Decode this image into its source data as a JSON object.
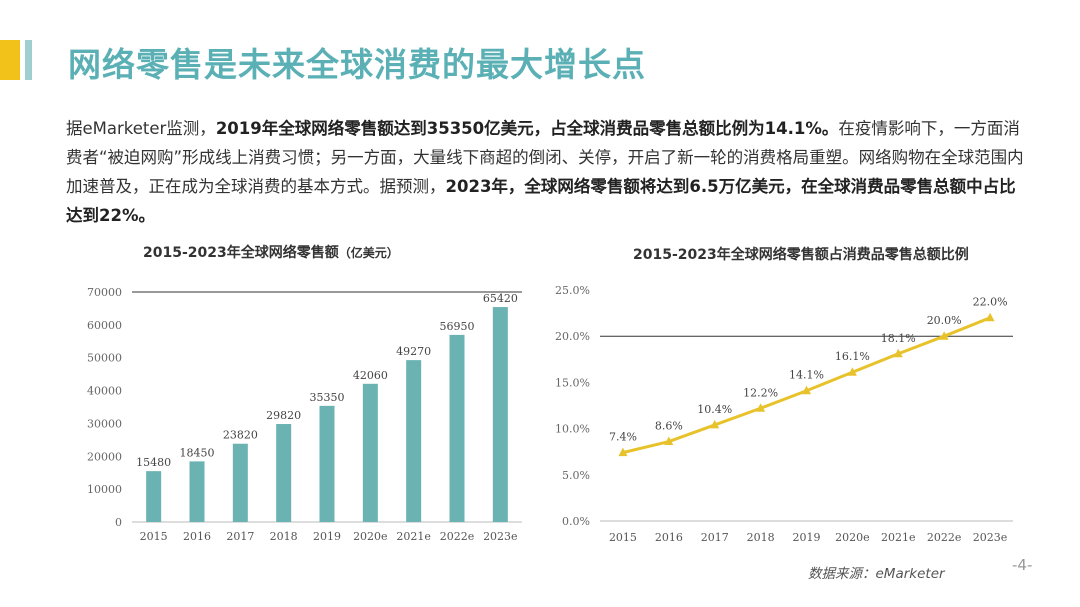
{
  "slide": {
    "title": "网络零售是未来全球消费的最大增长点",
    "intro": {
      "p1": "据eMarketer监测，",
      "b1": "2019年全球网络零售额达到35350亿美元，占全球消费品零售总额比例为14.1%。",
      "p2": "在疫情影响下，一方面消费者“被迫网购”形成线上消费习惯；另一方面，大量线下商超的倒闭、关停，开启了新一轮的消费格局重塑。网络购物在全球范围内加速普及，正在成为全球消费的基本方式。据预测，",
      "b2": "2023年，全球网络零售额将达到6.5万亿美元，在全球消费品零售总额中占比达到22%。"
    },
    "source": "数据来源：eMarketer",
    "page_number": "-4-",
    "colors": {
      "title": "#5ab0b5",
      "accent": "#f2c21b",
      "bar": "#6bb3b3",
      "line": "#e8c22a"
    }
  },
  "chart_data": [
    {
      "type": "bar",
      "title": "2015-2023年全球网络零售额",
      "title_unit": "（亿美元）",
      "categories": [
        "2015",
        "2016",
        "2017",
        "2018",
        "2019",
        "2020e",
        "2021e",
        "2022e",
        "2023e"
      ],
      "values": [
        15480,
        18450,
        23820,
        29820,
        35350,
        42060,
        49270,
        56950,
        65420
      ],
      "data_labels": [
        "15480",
        "18450",
        "23820",
        "29820",
        "35350",
        "42060",
        "49270",
        "56950",
        "65420"
      ],
      "ylim": [
        0,
        70000
      ],
      "yticks": [
        0,
        10000,
        20000,
        30000,
        40000,
        50000,
        60000,
        70000
      ],
      "ytick_labels": [
        "0",
        "10000",
        "20000",
        "30000",
        "40000",
        "50000",
        "60000",
        "70000"
      ],
      "grid": false
    },
    {
      "type": "line",
      "title": "2015-2023年全球网络零售额占消费品零售总额比例",
      "categories": [
        "2015",
        "2016",
        "2017",
        "2018",
        "2019",
        "2020e",
        "2021e",
        "2022e",
        "2023e"
      ],
      "values": [
        7.4,
        8.6,
        10.4,
        12.2,
        14.1,
        16.1,
        18.1,
        20.0,
        22.0
      ],
      "data_labels": [
        "7.4%",
        "8.6%",
        "10.4%",
        "12.2%",
        "14.1%",
        "16.1%",
        "18.1%",
        "20.0%",
        "22.0%"
      ],
      "ylim": [
        0,
        25
      ],
      "yticks": [
        0,
        5,
        10,
        15,
        20,
        25
      ],
      "ytick_labels": [
        "0.0%",
        "5.0%",
        "10.0%",
        "15.0%",
        "20.0%",
        "25.0%"
      ],
      "grid": false
    }
  ]
}
